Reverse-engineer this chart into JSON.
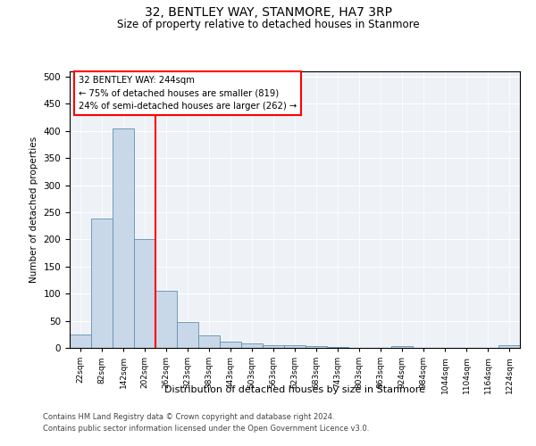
{
  "title": "32, BENTLEY WAY, STANMORE, HA7 3RP",
  "subtitle": "Size of property relative to detached houses in Stanmore",
  "xlabel": "Distribution of detached houses by size in Stanmore",
  "ylabel": "Number of detached properties",
  "bin_labels": [
    "22sqm",
    "82sqm",
    "142sqm",
    "202sqm",
    "262sqm",
    "323sqm",
    "383sqm",
    "443sqm",
    "503sqm",
    "563sqm",
    "623sqm",
    "683sqm",
    "743sqm",
    "803sqm",
    "863sqm",
    "924sqm",
    "984sqm",
    "1044sqm",
    "1104sqm",
    "1164sqm",
    "1224sqm"
  ],
  "bar_values": [
    25,
    238,
    405,
    200,
    106,
    48,
    23,
    11,
    8,
    5,
    5,
    3,
    2,
    0,
    0,
    3,
    0,
    0,
    0,
    0,
    5
  ],
  "bar_color": "#c8d8e8",
  "bar_edge_color": "#6090b0",
  "annotation_line1": "32 BENTLEY WAY: 244sqm",
  "annotation_line2": "← 75% of detached houses are smaller (819)",
  "annotation_line3": "24% of semi-detached houses are larger (262) →",
  "ylim": [
    0,
    510
  ],
  "yticks": [
    0,
    50,
    100,
    150,
    200,
    250,
    300,
    350,
    400,
    450,
    500
  ],
  "footer1": "Contains HM Land Registry data © Crown copyright and database right 2024.",
  "footer2": "Contains public sector information licensed under the Open Government Licence v3.0.",
  "bg_color": "#eef2f7"
}
